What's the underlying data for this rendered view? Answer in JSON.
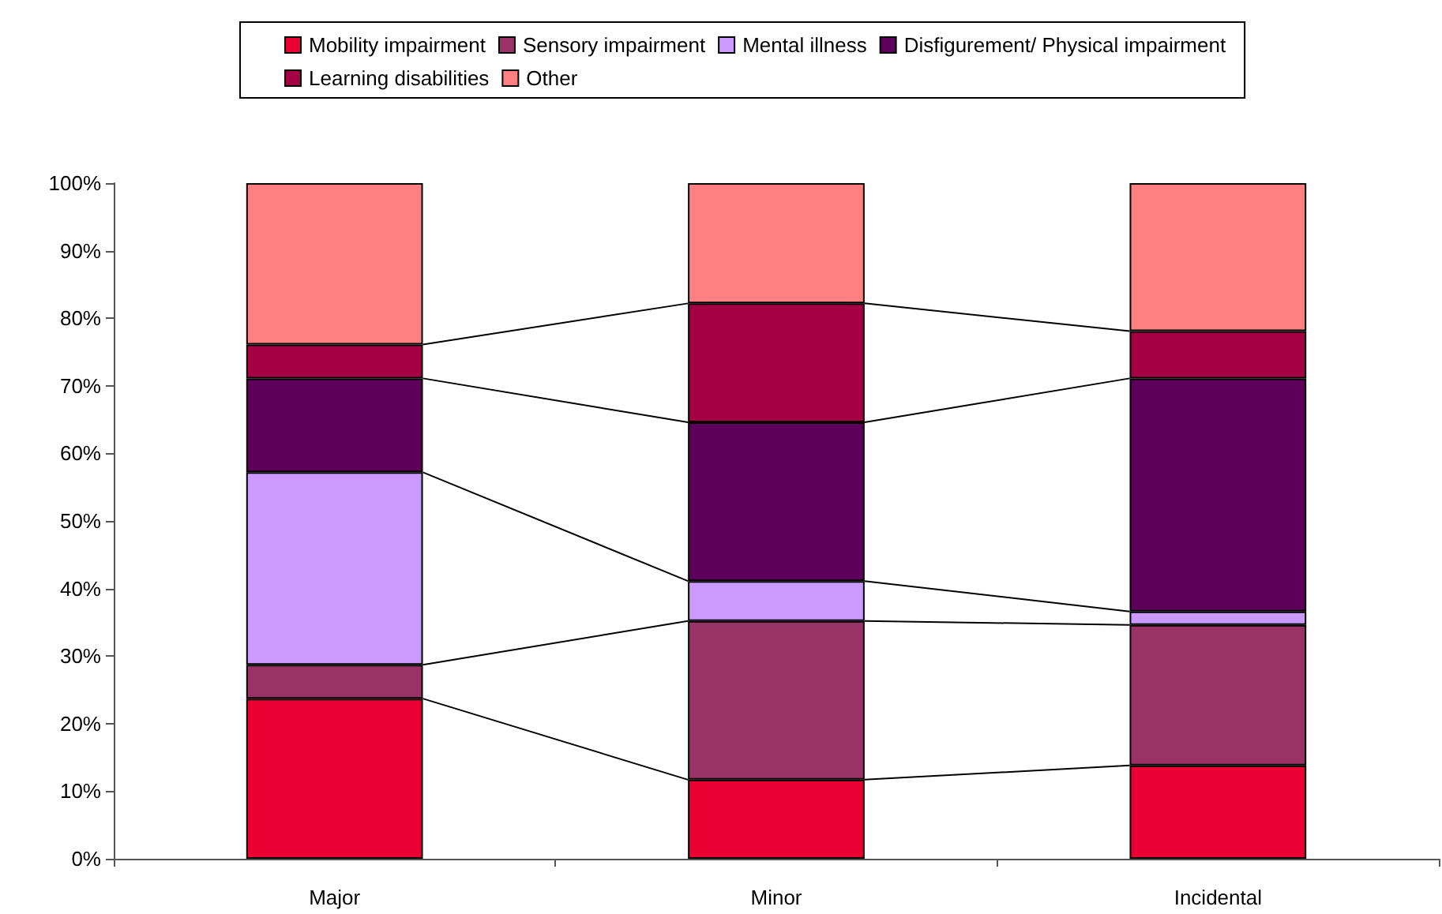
{
  "chart_data": {
    "type": "bar",
    "stacked": true,
    "categories": [
      "Major",
      "Minor",
      "Incidental"
    ],
    "series": [
      {
        "name": "Mobility impairment",
        "color": "#ea0033",
        "values": [
          23.7,
          11.7,
          13.8
        ]
      },
      {
        "name": "Sensory impairment",
        "color": "#993366",
        "values": [
          5.0,
          23.5,
          20.8
        ]
      },
      {
        "name": "Mental illness",
        "color": "#cc99ff",
        "values": [
          28.5,
          5.9,
          2.0
        ]
      },
      {
        "name": "Disfigurement/ Physical impairment",
        "color": "#5c005c",
        "values": [
          13.9,
          23.5,
          34.5
        ]
      },
      {
        "name": "Learning disabilities",
        "color": "#a50044",
        "values": [
          5.0,
          17.6,
          7.0
        ]
      },
      {
        "name": "Other",
        "color": "#ff8080",
        "values": [
          23.9,
          17.8,
          21.9
        ]
      }
    ],
    "ylim": [
      0,
      100
    ],
    "yticks": [
      {
        "value": 0,
        "label": "0%"
      },
      {
        "value": 10,
        "label": "10%"
      },
      {
        "value": 20,
        "label": "20%"
      },
      {
        "value": 30,
        "label": "30%"
      },
      {
        "value": 40,
        "label": "40%"
      },
      {
        "value": 50,
        "label": "50%"
      },
      {
        "value": 60,
        "label": "60%"
      },
      {
        "value": 70,
        "label": "70%"
      },
      {
        "value": 80,
        "label": "80%"
      },
      {
        "value": 90,
        "label": "90%"
      },
      {
        "value": 100,
        "label": "100%"
      }
    ],
    "grid": false,
    "legend": "top"
  }
}
